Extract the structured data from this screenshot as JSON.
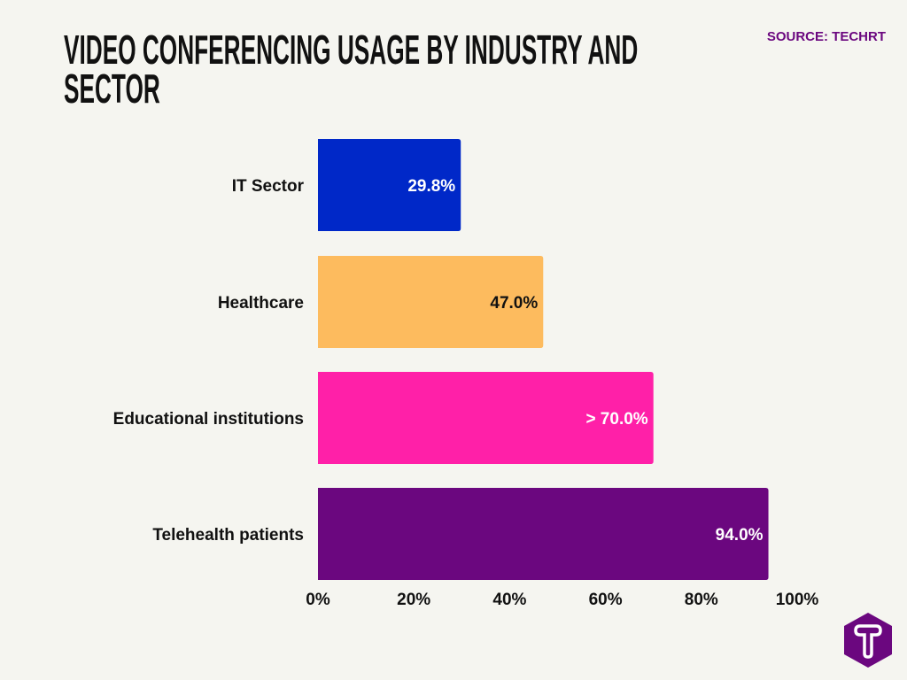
{
  "chart_data": {
    "type": "bar",
    "orientation": "horizontal",
    "title": "Video Conferencing Usage by Industry and Sector",
    "source": "SOURCE: TECHRT",
    "categories": [
      "IT Sector",
      "Healthcare",
      "Educational institutions",
      "Telehealth patients"
    ],
    "values": [
      29.8,
      47.0,
      70.0,
      94.0
    ],
    "data_labels": [
      "29.8%",
      "47.0%",
      "> 70.0%",
      "94.0%"
    ],
    "colors": [
      "#0028C8",
      "#FDBB5E",
      "#FF20A8",
      "#6B077F"
    ],
    "label_colors": [
      "#FFFFFF",
      "#111111",
      "#FFFFFF",
      "#FFFFFF"
    ],
    "xlim": [
      0,
      100
    ],
    "x_ticks": [
      "0%",
      "20%",
      "40%",
      "60%",
      "80%",
      "100%"
    ],
    "grid": false,
    "xlabel": "",
    "ylabel": ""
  },
  "brand": {
    "logo_letter": "T",
    "logo_color": "#6B077F"
  }
}
